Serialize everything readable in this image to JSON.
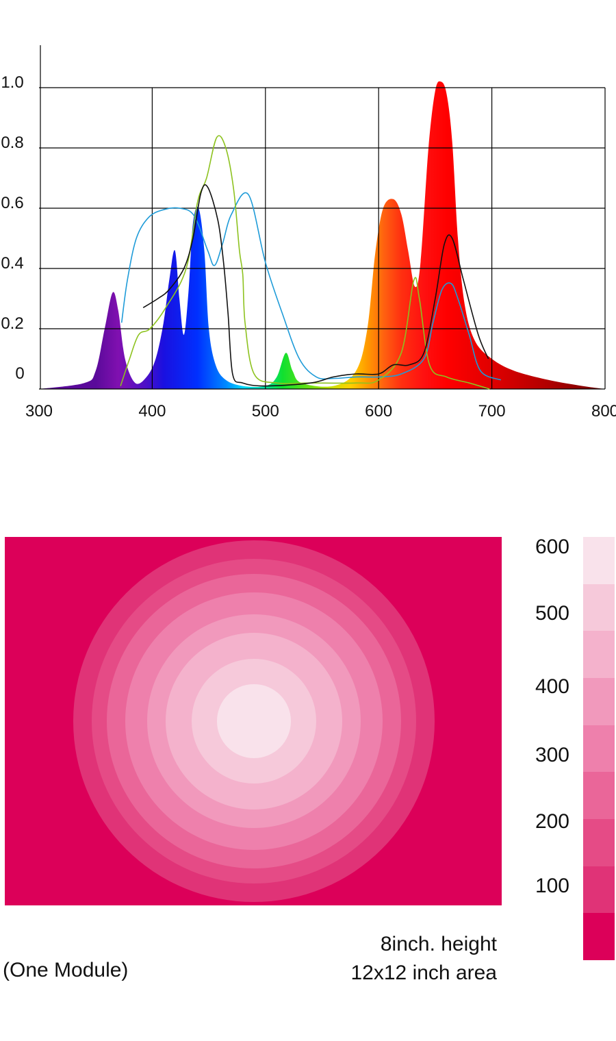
{
  "chart_data": [
    {
      "type": "area",
      "xlim": [
        300,
        800
      ],
      "ylim": [
        0,
        1.05
      ],
      "x_ticks": [
        "300",
        "400",
        "500",
        "600",
        "700",
        "800"
      ],
      "y_ticks": [
        "0",
        "0.2",
        "0.4",
        "0.6",
        "0.8",
        "1.0"
      ],
      "x_tick_values": [
        300,
        400,
        500,
        600,
        700,
        800
      ],
      "y_tick_values": [
        0,
        0.2,
        0.4,
        0.6,
        0.8,
        1.0
      ],
      "grid": true,
      "emission_spectrum": {
        "fill": "wavelength-color gradient",
        "peaks": [
          {
            "x": 365,
            "y": 0.32,
            "color": "#7B10B8"
          },
          {
            "x": 420,
            "y": 0.46,
            "color": "#1010E8"
          },
          {
            "x": 441,
            "y": 0.6,
            "color": "#0A3CFF"
          },
          {
            "x": 518,
            "y": 0.12,
            "color": "#22DD22"
          },
          {
            "x": 613,
            "y": 0.63,
            "color": "#FF5A10"
          },
          {
            "x": 655,
            "y": 1.02,
            "color": "#FF0A0A"
          }
        ],
        "points": [
          [
            300,
            0
          ],
          [
            340,
            0.02
          ],
          [
            350,
            0.06
          ],
          [
            358,
            0.2
          ],
          [
            365,
            0.32
          ],
          [
            370,
            0.26
          ],
          [
            376,
            0.1
          ],
          [
            385,
            0.02
          ],
          [
            395,
            0.04
          ],
          [
            403,
            0.1
          ],
          [
            410,
            0.22
          ],
          [
            415,
            0.36
          ],
          [
            420,
            0.46
          ],
          [
            424,
            0.3
          ],
          [
            428,
            0.18
          ],
          [
            432,
            0.32
          ],
          [
            436,
            0.55
          ],
          [
            441,
            0.6
          ],
          [
            446,
            0.46
          ],
          [
            450,
            0.2
          ],
          [
            456,
            0.08
          ],
          [
            465,
            0.03
          ],
          [
            480,
            0.01
          ],
          [
            500,
            0.01
          ],
          [
            510,
            0.04
          ],
          [
            518,
            0.12
          ],
          [
            524,
            0.06
          ],
          [
            532,
            0.02
          ],
          [
            560,
            0.01
          ],
          [
            580,
            0.06
          ],
          [
            590,
            0.2
          ],
          [
            597,
            0.45
          ],
          [
            604,
            0.6
          ],
          [
            613,
            0.63
          ],
          [
            620,
            0.58
          ],
          [
            626,
            0.46
          ],
          [
            632,
            0.34
          ],
          [
            637,
            0.42
          ],
          [
            644,
            0.8
          ],
          [
            650,
            0.99
          ],
          [
            655,
            1.02
          ],
          [
            660,
            0.98
          ],
          [
            665,
            0.82
          ],
          [
            670,
            0.5
          ],
          [
            676,
            0.28
          ],
          [
            685,
            0.16
          ],
          [
            700,
            0.1
          ],
          [
            720,
            0.06
          ],
          [
            750,
            0.03
          ],
          [
            780,
            0.01
          ],
          [
            800,
            0
          ]
        ]
      },
      "series": [
        {
          "color": "#1E9BD8",
          "points": [
            [
              373,
              0.22
            ],
            [
              378,
              0.36
            ],
            [
              386,
              0.5
            ],
            [
              397,
              0.57
            ],
            [
              410,
              0.595
            ],
            [
              424,
              0.6
            ],
            [
              437,
              0.575
            ],
            [
              449,
              0.46
            ],
            [
              455,
              0.41
            ],
            [
              462,
              0.48
            ],
            [
              470,
              0.58
            ],
            [
              485,
              0.645
            ],
            [
              500,
              0.42
            ],
            [
              515,
              0.25
            ],
            [
              530,
              0.1
            ],
            [
              545,
              0.04
            ],
            [
              560,
              0.035
            ],
            [
              580,
              0.04
            ],
            [
              600,
              0.04
            ],
            [
              620,
              0.05
            ],
            [
              640,
              0.1
            ],
            [
              648,
              0.22
            ],
            [
              656,
              0.33
            ],
            [
              664,
              0.35
            ],
            [
              670,
              0.3
            ],
            [
              680,
              0.18
            ],
            [
              690,
              0.06
            ],
            [
              708,
              0.03
            ]
          ]
        },
        {
          "color": "#8DC21F",
          "points": [
            [
              372,
              0.01
            ],
            [
              380,
              0.1
            ],
            [
              388,
              0.18
            ],
            [
              398,
              0.2
            ],
            [
              412,
              0.27
            ],
            [
              430,
              0.4
            ],
            [
              440,
              0.62
            ],
            [
              448,
              0.7
            ],
            [
              457,
              0.835
            ],
            [
              465,
              0.8
            ],
            [
              472,
              0.66
            ],
            [
              477,
              0.46
            ],
            [
              480,
              0.38
            ],
            [
              482,
              0.22
            ],
            [
              490,
              0.05
            ],
            [
              510,
              0.02
            ],
            [
              540,
              0.02
            ],
            [
              580,
              0.02
            ],
            [
              600,
              0.03
            ],
            [
              620,
              0.12
            ],
            [
              631,
              0.36
            ],
            [
              636,
              0.3
            ],
            [
              645,
              0.08
            ],
            [
              660,
              0.04
            ],
            [
              680,
              0.02
            ],
            [
              698,
              0
            ]
          ]
        },
        {
          "color": "#111111",
          "points": [
            [
              392,
              0.27
            ],
            [
              405,
              0.3
            ],
            [
              415,
              0.33
            ],
            [
              428,
              0.4
            ],
            [
              436,
              0.5
            ],
            [
              443,
              0.65
            ],
            [
              449,
              0.67
            ],
            [
              458,
              0.56
            ],
            [
              463,
              0.42
            ],
            [
              467,
              0.25
            ],
            [
              471,
              0.05
            ],
            [
              480,
              0.02
            ],
            [
              500,
              0.01
            ],
            [
              540,
              0.02
            ],
            [
              560,
              0.04
            ],
            [
              580,
              0.05
            ],
            [
              600,
              0.05
            ],
            [
              613,
              0.08
            ],
            [
              627,
              0.08
            ],
            [
              640,
              0.12
            ],
            [
              650,
              0.3
            ],
            [
              658,
              0.48
            ],
            [
              665,
              0.5
            ],
            [
              675,
              0.36
            ],
            [
              688,
              0.18
            ],
            [
              697,
              0.1
            ]
          ]
        }
      ]
    },
    {
      "type": "heatmap",
      "rings": [
        {
          "r": 0.49,
          "color": "#E03377"
        },
        {
          "r": 0.44,
          "color": "#E54B86"
        },
        {
          "r": 0.4,
          "color": "#EA6699"
        },
        {
          "r": 0.35,
          "color": "#EE80AC"
        },
        {
          "r": 0.29,
          "color": "#F199BC"
        },
        {
          "r": 0.24,
          "color": "#F4B2CC"
        },
        {
          "r": 0.17,
          "color": "#F6C9DA"
        },
        {
          "r": 0.1,
          "color": "#F9E2EB"
        }
      ],
      "background": "#DC0059",
      "legend": {
        "labels": [
          "600",
          "500",
          "400",
          "300",
          "200",
          "100"
        ],
        "colors": [
          "#F9E2EB",
          "#F6C9DA",
          "#F4B2CC",
          "#F199BC",
          "#EE80AC",
          "#EA6699",
          "#E54B86",
          "#E03377",
          "#DC0059"
        ]
      }
    }
  ],
  "captions": {
    "module": "(One Module)",
    "height": "8inch. height",
    "area": "12x12 inch area"
  }
}
